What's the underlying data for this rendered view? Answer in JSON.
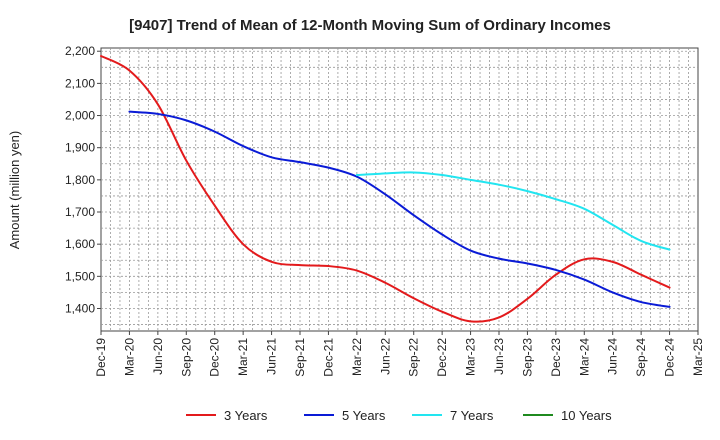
{
  "chart_data": {
    "type": "line",
    "title": "[9407]  Trend of Mean of 12-Month Moving Sum of Ordinary Incomes",
    "xlabel": "",
    "ylabel": "Amount (million yen)",
    "ylim": [
      1330,
      2210
    ],
    "y_ticks": [
      1400,
      1500,
      1600,
      1700,
      1800,
      1900,
      2000,
      2100,
      2200
    ],
    "y_tick_labels": [
      "1,400",
      "1,500",
      "1,600",
      "1,700",
      "1,800",
      "1,900",
      "2,000",
      "2,100",
      "2,200"
    ],
    "x_tick_labels": [
      "Dec-19",
      "Mar-20",
      "Jun-20",
      "Sep-20",
      "Dec-20",
      "Mar-21",
      "Jun-21",
      "Sep-21",
      "Dec-21",
      "Mar-22",
      "Jun-22",
      "Sep-22",
      "Dec-22",
      "Mar-23",
      "Jun-23",
      "Sep-23",
      "Dec-23",
      "Mar-24",
      "Jun-24",
      "Sep-24",
      "Dec-24",
      "Mar-25"
    ],
    "grid": true,
    "legend_position": "bottom",
    "series": [
      {
        "name": "3 Years",
        "color": "#e31a1c",
        "start_index": 0,
        "values": [
          2185,
          2140,
          2035,
          1860,
          1720,
          1600,
          1545,
          1535,
          1532,
          1518,
          1480,
          1432,
          1390,
          1360,
          1372,
          1430,
          1505,
          1553,
          1545,
          1505,
          1465
        ]
      },
      {
        "name": "5 Years",
        "color": "#0a1bd6",
        "start_index": 1,
        "values": [
          2012,
          2005,
          1985,
          1950,
          1905,
          1870,
          1855,
          1838,
          1810,
          1755,
          1690,
          1630,
          1580,
          1555,
          1540,
          1520,
          1490,
          1450,
          1420,
          1405
        ]
      },
      {
        "name": "7 Years",
        "color": "#22e5f0",
        "start_index": 9,
        "values": [
          1815,
          1820,
          1823,
          1815,
          1800,
          1785,
          1765,
          1740,
          1710,
          1660,
          1610,
          1583
        ]
      },
      {
        "name": "10 Years",
        "color": "#1f8a1f",
        "start_index": 0,
        "values": []
      }
    ]
  }
}
